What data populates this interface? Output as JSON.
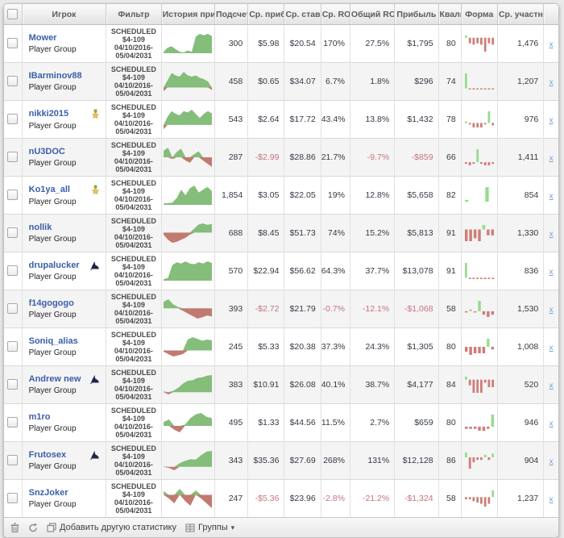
{
  "columns": [
    "",
    "Игрок",
    "Фильтр",
    "История прибыли",
    "Подсчет",
    "Ср. прибыль",
    "Ср. ставка",
    "Ср. ROI",
    "Общий ROI",
    "Прибыль",
    "Квалиф",
    "Форма",
    "Ср. участников",
    ""
  ],
  "filter": {
    "lines": [
      "SCHEDULED",
      "$4-109",
      "04/10/2016-",
      "05/04/2031"
    ]
  },
  "group_label": "Player Group",
  "remove_label": "x",
  "footer": {
    "add_stat": "Добавить другую статистику",
    "groups": "Группы",
    "caret": "▾"
  },
  "colors": {
    "spark_green": "#85bd7a",
    "spark_red": "#c17a70",
    "form_green": "#96dc8e",
    "form_red": "#cf7d76",
    "link_blue": "#3a5fa8",
    "negative": "#c4737f"
  },
  "rows": [
    {
      "name": "Mower",
      "badge": null,
      "count": "300",
      "avg_profit": "$5.98",
      "avg_stake": "$20.54",
      "avg_roi": "170%",
      "total_roi": "27.5%",
      "profit": "$1,795",
      "qualified": "80",
      "avg_entrants": "1,476",
      "history": [
        0.5,
        2,
        2.5,
        1.5,
        0.5,
        0.3,
        1,
        0.5,
        6,
        7,
        6.5,
        7,
        6.2
      ],
      "form": [
        0.8,
        -2,
        -2.5,
        -2,
        -2.5,
        -5,
        -2,
        -2.5
      ]
    },
    {
      "name": "IBarminov88",
      "badge": null,
      "count": "458",
      "avg_profit": "$0.65",
      "avg_stake": "$34.07",
      "avg_roi": "6.7%",
      "total_roi": "1.8%",
      "profit": "$296",
      "qualified": "74",
      "avg_entrants": "1,207",
      "history": [
        -1.5,
        3,
        6,
        5,
        4.5,
        6.5,
        5,
        4.5,
        5,
        4,
        3.5,
        2.5,
        -1
      ],
      "form": [
        6,
        -0.5,
        -0.5,
        -0.5,
        -0.5,
        -0.5,
        -0.5,
        -0.5
      ]
    },
    {
      "name": "nikki2015",
      "badge": "medal",
      "count": "543",
      "avg_profit": "$2.64",
      "avg_stake": "$17.72",
      "avg_roi": "43.4%",
      "total_roi": "13.8%",
      "profit": "$1,432",
      "qualified": "78",
      "avg_entrants": "976",
      "history": [
        -1.5,
        3,
        5,
        4,
        3.5,
        5,
        4.5,
        5.5,
        4,
        2.5,
        4,
        5,
        4.2
      ],
      "form": [
        0.6,
        -0.5,
        -1.5,
        -1.5,
        -1.5,
        -0.5,
        4,
        -0.8
      ]
    },
    {
      "name": "nU3DOC",
      "badge": null,
      "count": "287",
      "avg_profit": "-$2.99",
      "avg_stake": "$28.86",
      "avg_roi": "21.7%",
      "total_roi": "-9.7%",
      "profit": "-$859",
      "qualified": "66",
      "avg_entrants": "1,411",
      "history": [
        3,
        4.5,
        -0.8,
        2.5,
        4,
        -1.5,
        -2.5,
        1.5,
        2.8,
        -1.5,
        -3,
        -4.5
      ],
      "form": [
        -0.8,
        -1.5,
        -0.8,
        6,
        -0.8,
        -1.5,
        -1.5,
        -0.8
      ]
    },
    {
      "name": "Ko1ya_all",
      "badge": "medal",
      "count": "1,854",
      "avg_profit": "$3.05",
      "avg_stake": "$22.05",
      "avg_roi": "19%",
      "total_roi": "12.8%",
      "profit": "$5,658",
      "qualified": "82",
      "avg_entrants": "854",
      "history": [
        0.5,
        0.6,
        0.8,
        2.5,
        5.5,
        3.5,
        6,
        7,
        4.5,
        5.5,
        6.5,
        5
      ],
      "form": [
        0.6,
        0,
        0,
        0,
        5,
        0
      ]
    },
    {
      "name": "nollik",
      "badge": null,
      "count": "688",
      "avg_profit": "$8.45",
      "avg_stake": "$51.73",
      "avg_roi": "74%",
      "total_roi": "15.2%",
      "profit": "$5,813",
      "qualified": "91",
      "avg_entrants": "1,330",
      "history": [
        -1,
        -3.5,
        -5,
        -4.5,
        -3.5,
        -2.5,
        -1,
        2,
        4,
        4.5,
        3.8,
        4.2
      ],
      "form": [
        -4,
        -4,
        -3,
        -4,
        1.5,
        -2,
        -2
      ]
    },
    {
      "name": "drupalucker",
      "badge": "shark",
      "count": "570",
      "avg_profit": "$22.94",
      "avg_stake": "$56.62",
      "avg_roi": "64.3%",
      "total_roi": "37.7%",
      "profit": "$13,078",
      "qualified": "91",
      "avg_entrants": "836",
      "history": [
        0.5,
        1,
        5.5,
        6.5,
        6,
        6.8,
        6,
        5.8,
        6.5,
        6,
        6.8,
        6.2
      ],
      "form": [
        5.5,
        -0.5,
        -0.5,
        -0.5,
        -0.5,
        -0.5,
        -0.5,
        -0.5
      ]
    },
    {
      "name": "f14gogogo",
      "badge": null,
      "count": "393",
      "avg_profit": "-$2.72",
      "avg_stake": "$21.79",
      "avg_roi": "-0.7%",
      "total_roi": "-12.1%",
      "profit": "-$1,068",
      "qualified": "58",
      "avg_entrants": "1,530",
      "history": [
        2.5,
        3.5,
        1.5,
        0.5,
        -1,
        -2,
        -3,
        -4,
        -3.5,
        -2.8,
        -3.2
      ],
      "form": [
        -0.5,
        0.8,
        -0.5,
        4.5,
        -1.5,
        -2.5,
        -1.5
      ]
    },
    {
      "name": "Soniq_alias",
      "badge": null,
      "count": "245",
      "avg_profit": "$5.33",
      "avg_stake": "$20.38",
      "avg_roi": "37.3%",
      "total_roi": "24.3%",
      "profit": "$1,305",
      "qualified": "80",
      "avg_entrants": "1,008",
      "history": [
        -0.5,
        -1.5,
        -2.5,
        -2,
        -1.5,
        4.5,
        5.5,
        4.8,
        4,
        4.5,
        4.2
      ],
      "form": [
        -1.5,
        -2.5,
        -2,
        -2,
        -2,
        2.5,
        -0.8
      ]
    },
    {
      "name": "Andrew new",
      "badge": "shark",
      "count": "383",
      "avg_profit": "$10.91",
      "avg_stake": "$26.08",
      "avg_roi": "40.1%",
      "total_roi": "38.7%",
      "profit": "$4,177",
      "qualified": "84",
      "avg_entrants": "520",
      "history": [
        0.3,
        -0.8,
        0.5,
        1.5,
        3,
        4,
        4.2,
        5,
        5.2,
        5.8,
        6
      ],
      "form": [
        0.8,
        -1.5,
        -3.5,
        -3.5,
        -3.5,
        -0.8,
        -2,
        -2
      ]
    },
    {
      "name": "m1ro",
      "badge": null,
      "count": "495",
      "avg_profit": "$1.33",
      "avg_stake": "$44.56",
      "avg_roi": "11.5%",
      "total_roi": "2.7%",
      "profit": "$659",
      "qualified": "80",
      "avg_entrants": "946",
      "history": [
        1.5,
        2.5,
        -1.5,
        -2.5,
        0.5,
        3,
        4.5,
        5,
        3.5,
        3
      ],
      "form": [
        -0.8,
        -0.8,
        -0.8,
        -1.5,
        -1.5,
        -0.8,
        4.5
      ]
    },
    {
      "name": "Frutosex",
      "badge": "shark",
      "count": "343",
      "avg_profit": "$35.36",
      "avg_stake": "$27.69",
      "avg_roi": "268%",
      "total_roi": "131%",
      "profit": "$12,128",
      "qualified": "86",
      "avg_entrants": "904",
      "history": [
        0.2,
        -0.5,
        -1.5,
        1.5,
        2.5,
        3.2,
        3.1,
        5,
        6.5,
        6.8
      ],
      "form": [
        1.5,
        -3.5,
        -1.5,
        -0.8,
        -0.8,
        0.8,
        -0.8,
        1.2
      ]
    },
    {
      "name": "SnzJoker",
      "badge": null,
      "count": "247",
      "avg_profit": "-$5.36",
      "avg_stake": "$23.96",
      "avg_roi": "-2.8%",
      "total_roi": "-21.2%",
      "profit": "-$1,324",
      "qualified": "58",
      "avg_entrants": "1,237",
      "history": [
        1.5,
        -1.5,
        -3.5,
        2.5,
        -2.5,
        -4.5,
        1.8,
        -1.5,
        -3.5,
        -5.5
      ],
      "form": [
        -0.8,
        -0.8,
        -1.5,
        -2,
        -2.5,
        -3.5,
        -2.5,
        2.5
      ]
    }
  ]
}
